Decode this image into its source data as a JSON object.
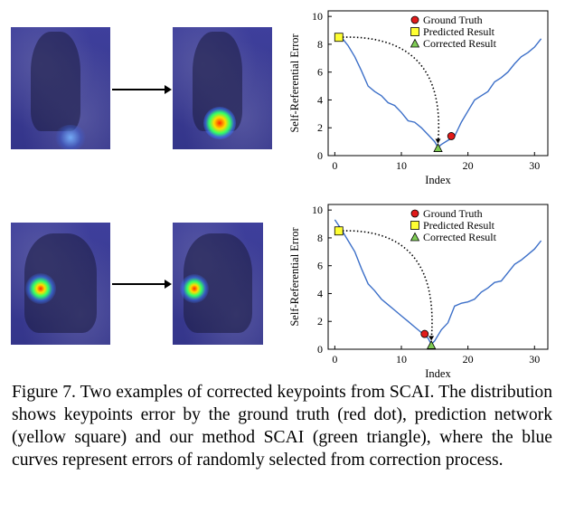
{
  "caption": {
    "text": "Figure 7.  Two examples of corrected keypoints from SCAI. The distribution shows keypoints error by the ground truth (red dot), prediction network (yellow square) and our method SCAI (green triangle), where the blue curves represent errors of randomly selected from correction process."
  },
  "colors": {
    "curve": "#3c6fc8",
    "ground_truth": "#e11b1b",
    "predicted": "#ffff33",
    "corrected": "#7fcc55",
    "heatmap_bg": "#3a3b93"
  },
  "chart_data": [
    {
      "type": "line",
      "xlabel": "Index",
      "ylabel": "Self-Referential Error",
      "xlim": [
        -1,
        32
      ],
      "ylim": [
        0,
        10.4
      ],
      "xticks": [
        0,
        10,
        20,
        30
      ],
      "yticks": [
        0,
        2,
        4,
        6,
        8,
        10
      ],
      "legend": {
        "placement": "top-center",
        "entries": [
          "Ground Truth",
          "Predicted Result",
          "Corrected Result"
        ]
      },
      "series": [
        {
          "x": [
            1,
            2,
            3,
            4,
            5,
            6,
            7,
            8,
            9,
            10,
            11,
            12,
            13,
            14,
            15,
            15.5,
            16,
            17,
            18,
            19,
            20,
            21,
            22,
            23,
            24,
            25,
            26,
            27,
            28,
            29,
            30,
            31
          ],
          "y": [
            8.5,
            7.9,
            7.1,
            6.1,
            5.0,
            4.6,
            4.3,
            3.8,
            3.6,
            3.1,
            2.5,
            2.4,
            2.0,
            1.5,
            1.0,
            0.6,
            0.8,
            1.1,
            1.4,
            2.4,
            3.2,
            4.0,
            4.3,
            4.6,
            5.3,
            5.6,
            6.0,
            6.6,
            7.1,
            7.4,
            7.8,
            8.4
          ]
        }
      ],
      "points": {
        "ground_truth": {
          "x": 17.5,
          "y": 1.4
        },
        "predicted": {
          "x": 0.6,
          "y": 8.5
        },
        "corrected": {
          "x": 15.5,
          "y": 0.55
        }
      }
    },
    {
      "type": "line",
      "xlabel": "Index",
      "ylabel": "Self-Referential Error",
      "xlim": [
        -1,
        32
      ],
      "ylim": [
        0,
        10.4
      ],
      "xticks": [
        0,
        10,
        20,
        30
      ],
      "yticks": [
        0,
        2,
        4,
        6,
        8,
        10
      ],
      "legend": {
        "placement": "top-center",
        "entries": [
          "Ground Truth",
          "Predicted Result",
          "Corrected Result"
        ]
      },
      "series": [
        {
          "x": [
            0,
            1,
            2,
            3,
            4,
            5,
            6,
            7,
            8,
            9,
            10,
            11,
            12,
            13,
            14,
            14.5,
            15,
            16,
            17,
            18,
            19,
            20,
            21,
            22,
            23,
            24,
            25,
            26,
            27,
            28,
            29,
            30,
            31
          ],
          "y": [
            9.3,
            8.6,
            7.8,
            7.0,
            5.8,
            4.7,
            4.2,
            3.6,
            3.2,
            2.8,
            2.4,
            2.0,
            1.6,
            1.2,
            0.8,
            0.35,
            0.6,
            1.4,
            1.9,
            3.1,
            3.3,
            3.4,
            3.6,
            4.1,
            4.4,
            4.8,
            4.9,
            5.5,
            6.1,
            6.4,
            6.8,
            7.2,
            7.8
          ]
        }
      ],
      "points": {
        "ground_truth": {
          "x": 13.5,
          "y": 1.1
        },
        "predicted": {
          "x": 0.6,
          "y": 8.5
        },
        "corrected": {
          "x": 14.5,
          "y": 0.3
        }
      }
    }
  ]
}
